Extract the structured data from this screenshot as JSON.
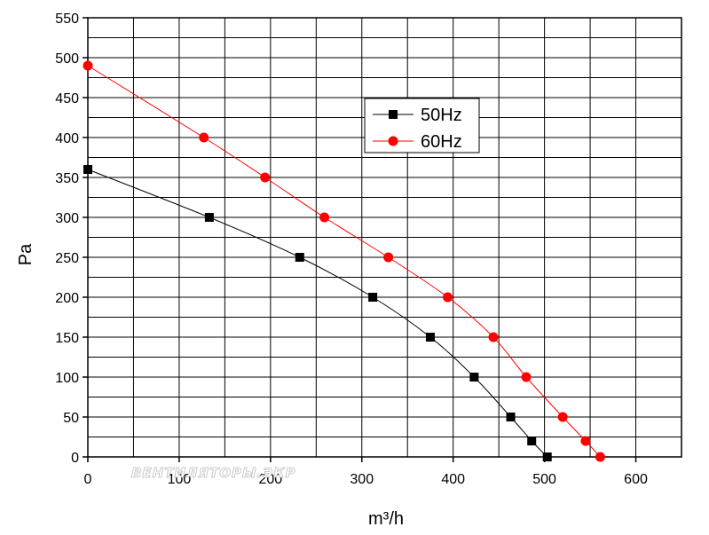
{
  "chart_data": {
    "type": "line",
    "xlabel": "m³/h",
    "ylabel": "Pa",
    "xlim": [
      0,
      650
    ],
    "ylim": [
      0,
      550
    ],
    "x_ticks": [
      0,
      100,
      200,
      300,
      400,
      500,
      600
    ],
    "y_ticks": [
      0,
      50,
      100,
      150,
      200,
      250,
      300,
      350,
      400,
      450,
      500,
      550
    ],
    "grid": true,
    "legend_position": "top-center",
    "series": [
      {
        "name": "50Hz",
        "color": "#000000",
        "marker": "square",
        "x": [
          0,
          133,
          232,
          312,
          375,
          423,
          463,
          486,
          503
        ],
        "y": [
          360,
          300,
          250,
          200,
          150,
          100,
          50,
          20,
          0
        ]
      },
      {
        "name": "60Hz",
        "color": "#ff0000",
        "marker": "circle",
        "x": [
          0,
          127,
          194,
          259,
          329,
          394,
          444,
          480,
          520,
          545,
          561
        ],
        "y": [
          490,
          400,
          350,
          300,
          250,
          200,
          150,
          100,
          50,
          20,
          0
        ]
      }
    ]
  },
  "watermark": "ВЕНТИЛЯТОРЫ.ЭКР"
}
